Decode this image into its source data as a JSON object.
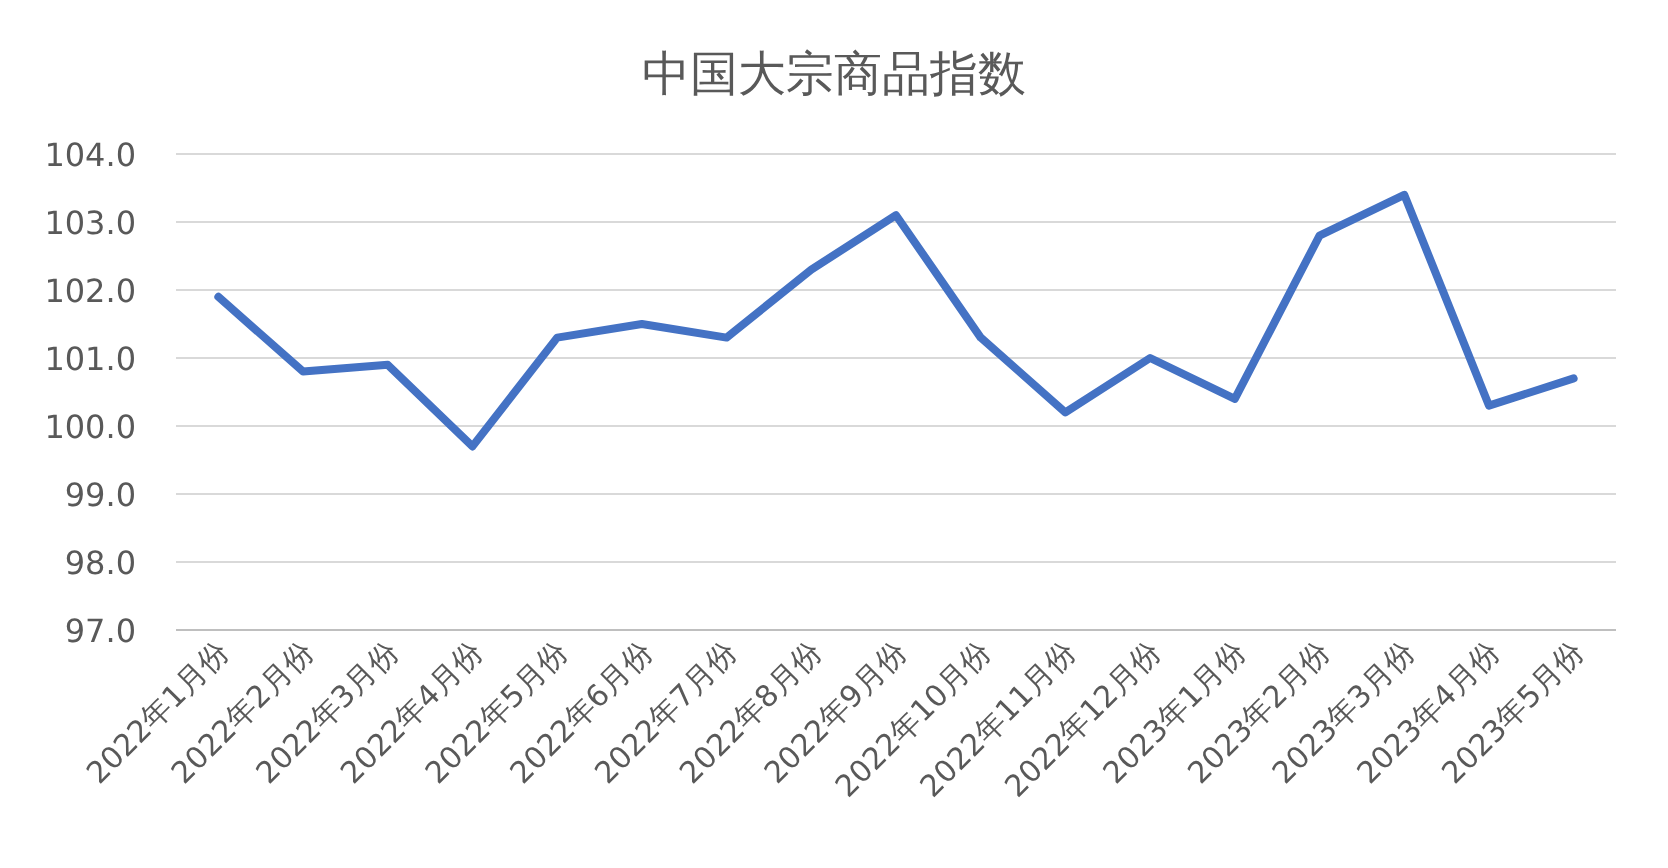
{
  "chart_data": {
    "type": "line",
    "title": "中国大宗商品指数",
    "categories": [
      "2022年1月份",
      "2022年2月份",
      "2022年3月份",
      "2022年4月份",
      "2022年5月份",
      "2022年6月份",
      "2022年7月份",
      "2022年8月份",
      "2022年9月份",
      "2022年10月份",
      "2022年11月份",
      "2022年12月份",
      "2023年1月份",
      "2023年2月份",
      "2023年3月份",
      "2023年4月份",
      "2023年5月份"
    ],
    "series": [
      {
        "color": "#4472c4",
        "values": [
          101.9,
          100.8,
          100.9,
          99.7,
          101.3,
          101.5,
          101.3,
          102.3,
          103.1,
          101.3,
          100.2,
          101.0,
          100.4,
          102.8,
          103.4,
          100.3,
          100.7
        ]
      }
    ],
    "ylim": [
      97,
      104
    ],
    "yticks": [
      {
        "value": 97,
        "label": "97.0"
      },
      {
        "value": 98,
        "label": "98.0"
      },
      {
        "value": 99,
        "label": "99.0"
      },
      {
        "value": 100,
        "label": "100.0"
      },
      {
        "value": 101,
        "label": "101.0"
      },
      {
        "value": 102,
        "label": "102.0"
      },
      {
        "value": 103,
        "label": "103.0"
      },
      {
        "value": 104,
        "label": "104.0"
      }
    ],
    "grid": "y",
    "marker": "none",
    "line_style": "solid"
  }
}
